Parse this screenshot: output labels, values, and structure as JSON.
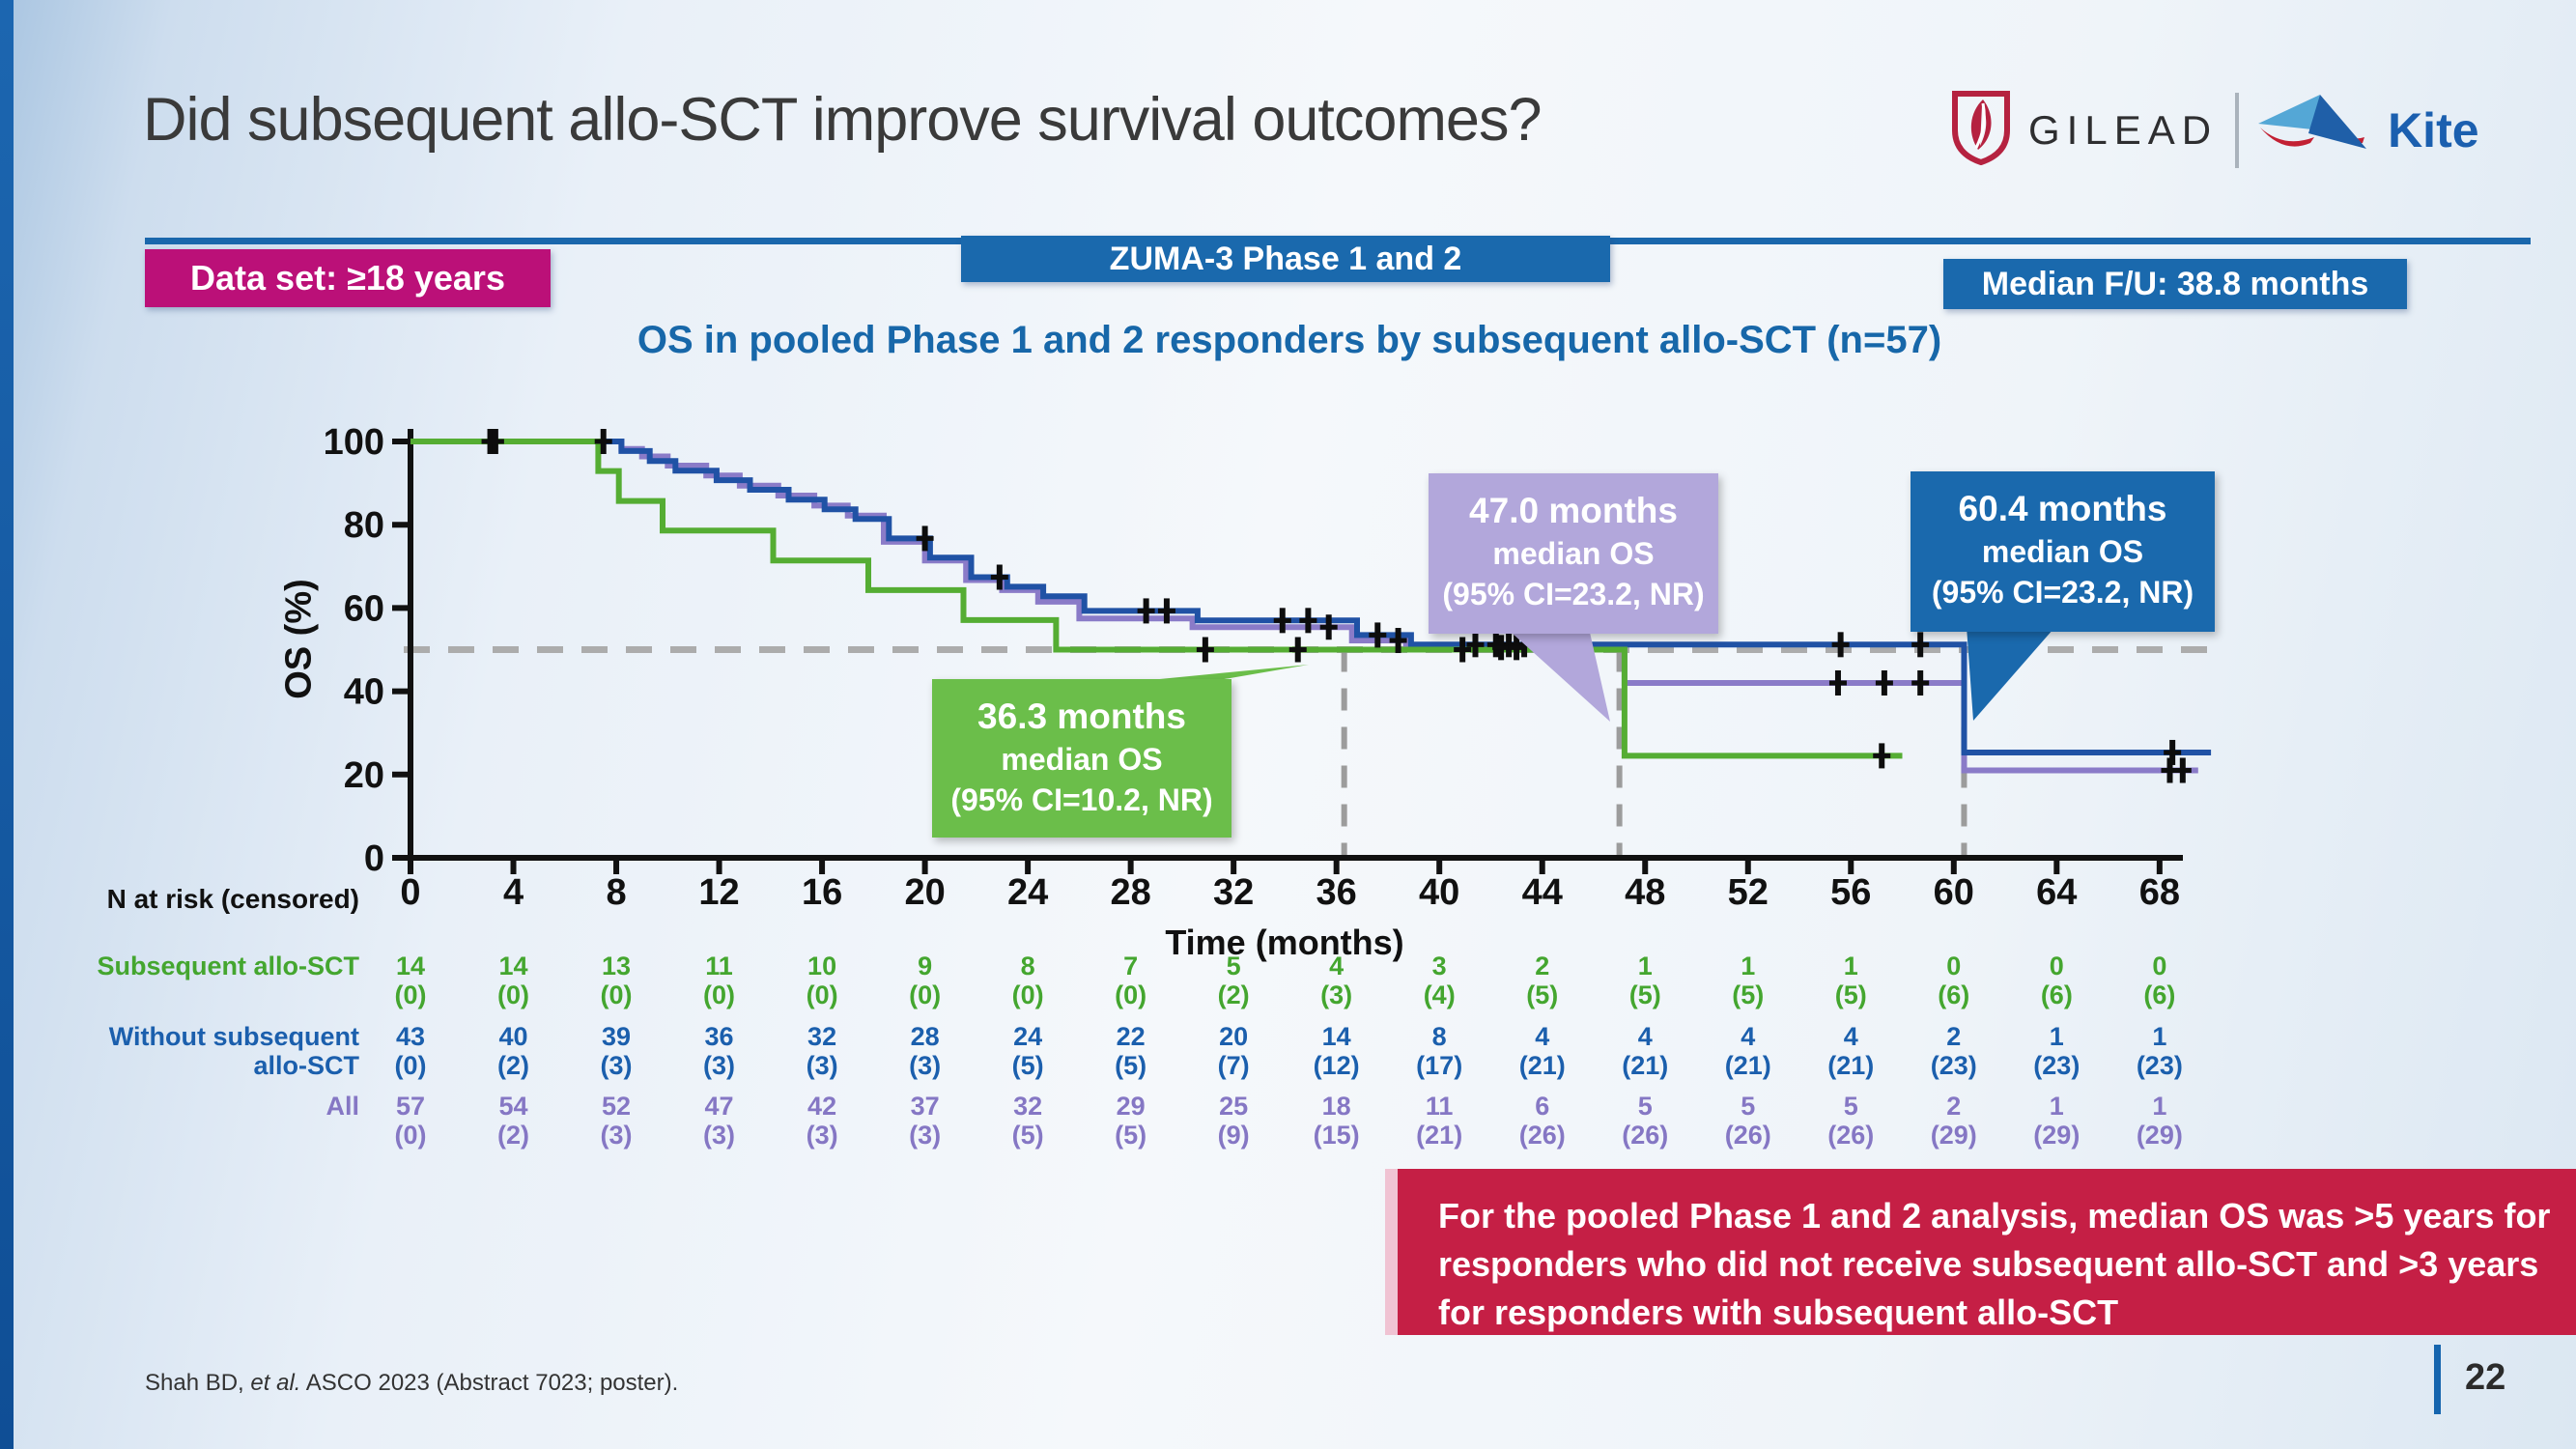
{
  "slide": {
    "title": "Did subsequent allo-SCT improve survival outcomes?",
    "page_number": "22",
    "footer": {
      "prefix": "Shah BD, ",
      "italic": "et al.",
      "suffix": " ASCO 2023 (Abstract 7023; poster)."
    }
  },
  "logos": {
    "gilead_wordmark": "GILEAD",
    "kite_wordmark": "Kite"
  },
  "badges": {
    "dataset": "Data set: ≥18 years",
    "study": "ZUMA-3 Phase 1 and 2",
    "followup": "Median F/U: 38.8 months"
  },
  "chart_title": "OS in pooled Phase 1 and 2 responders by subsequent allo-SCT (n=57)",
  "colors": {
    "accent_blue": "#1a69ad",
    "magenta": "#bb1078",
    "red_box": "#c51f45",
    "red_box_strip": "#f0c3d3",
    "curve_green": "#55ad33",
    "curve_blue": "#2052a5",
    "curve_purple": "#8a7bc8",
    "callout_green": "#6bbe4a",
    "callout_purple": "#b2a7db",
    "callout_blue": "#1a69ad",
    "dashed_gray": "#acacac",
    "left_bar_blue": "#1159a5",
    "axis_black": "#111111"
  },
  "callouts": [
    {
      "title": "36.3 months",
      "line2": "median OS",
      "line3": "(95% CI=10.2, NR)",
      "color": "#6bbe4a",
      "series": "Subsequent allo-SCT"
    },
    {
      "title": "47.0 months",
      "line2": "median OS",
      "line3": "(95% CI=23.2, NR)",
      "color": "#b2a7db",
      "series": "All"
    },
    {
      "title": "60.4 months",
      "line2": "median OS",
      "line3": "(95% CI=23.2, NR)",
      "color": "#1a69ad",
      "series": "Without subsequent allo-SCT"
    }
  ],
  "takeaway": "For the pooled Phase 1 and 2 analysis, median OS was >5 years for responders who did not receive subsequent allo-SCT and >3 years for responders with subsequent allo-SCT",
  "chart_data": {
    "type": "line",
    "subtype": "kaplan-meier",
    "title": "OS in pooled Phase 1 and 2 responders by subsequent allo-SCT (n=57)",
    "xlabel": "Time (months)",
    "ylabel": "OS (%)",
    "xlim": [
      0,
      68
    ],
    "ylim": [
      0,
      100
    ],
    "xticks": [
      0,
      4,
      8,
      12,
      16,
      20,
      24,
      28,
      32,
      36,
      40,
      44,
      48,
      52,
      56,
      60,
      64,
      68
    ],
    "yticks": [
      0,
      20,
      40,
      60,
      80,
      100
    ],
    "grid": false,
    "legend": "none (series identified in risk table and callouts)",
    "reference_line_y": 50,
    "median_markers_x": [
      36.3,
      47.0,
      60.4
    ],
    "series": [
      {
        "name": "Subsequent allo-SCT",
        "color": "#55ad33",
        "median_os_months": 36.3,
        "ci_95": "10.2, NR",
        "steps": [
          [
            0,
            100
          ],
          [
            7.3,
            100
          ],
          [
            7.3,
            92.9
          ],
          [
            8.1,
            92.9
          ],
          [
            8.1,
            85.7
          ],
          [
            9.8,
            85.7
          ],
          [
            9.8,
            78.6
          ],
          [
            14.1,
            78.6
          ],
          [
            14.1,
            71.4
          ],
          [
            17.8,
            71.4
          ],
          [
            17.8,
            64.3
          ],
          [
            21.5,
            64.3
          ],
          [
            21.5,
            57.1
          ],
          [
            25.1,
            57.1
          ],
          [
            25.1,
            50
          ],
          [
            47.2,
            50
          ],
          [
            47.2,
            24.5
          ],
          [
            58,
            24.5
          ]
        ],
        "censors": [
          [
            3.1,
            100
          ],
          [
            30.9,
            50
          ],
          [
            34.5,
            50
          ],
          [
            40.9,
            50
          ],
          [
            57.2,
            24.5
          ]
        ]
      },
      {
        "name": "Without subsequent allo-SCT",
        "color": "#2052a5",
        "median_os_months": 60.4,
        "ci_95": "23.2, NR",
        "steps": [
          [
            0,
            100
          ],
          [
            8.2,
            100
          ],
          [
            8.2,
            97.7
          ],
          [
            9.3,
            97.7
          ],
          [
            9.3,
            95.3
          ],
          [
            10.3,
            95.3
          ],
          [
            10.3,
            93
          ],
          [
            11.9,
            93
          ],
          [
            11.9,
            90.7
          ],
          [
            13.2,
            90.7
          ],
          [
            13.2,
            88.4
          ],
          [
            14.7,
            88.4
          ],
          [
            14.7,
            86
          ],
          [
            16.1,
            86
          ],
          [
            16.1,
            83.7
          ],
          [
            17.3,
            83.7
          ],
          [
            17.3,
            81.4
          ],
          [
            18.6,
            81.4
          ],
          [
            18.6,
            76.7
          ],
          [
            20.2,
            76.7
          ],
          [
            20.2,
            72.1
          ],
          [
            21.8,
            72.1
          ],
          [
            21.8,
            67.4
          ],
          [
            23.2,
            67.4
          ],
          [
            23.2,
            65.1
          ],
          [
            24.6,
            65.1
          ],
          [
            24.6,
            62.8
          ],
          [
            26.2,
            62.8
          ],
          [
            26.2,
            59.3
          ],
          [
            30.6,
            59.3
          ],
          [
            30.6,
            57
          ],
          [
            36.8,
            57
          ],
          [
            36.8,
            53.5
          ],
          [
            38.9,
            53.5
          ],
          [
            38.9,
            51.2
          ],
          [
            60.4,
            51.2
          ],
          [
            60.4,
            25.3
          ],
          [
            70,
            25.3
          ]
        ],
        "censors": [
          [
            3.3,
            100
          ],
          [
            7.5,
            100
          ],
          [
            20,
            76.7
          ],
          [
            22.9,
            67.4
          ],
          [
            28.6,
            59.3
          ],
          [
            29.4,
            59.3
          ],
          [
            33.9,
            57
          ],
          [
            34.9,
            57
          ],
          [
            37.6,
            53.5
          ],
          [
            41.4,
            51.2
          ],
          [
            42.2,
            51.2
          ],
          [
            42.7,
            51.2
          ],
          [
            43.3,
            51.2
          ],
          [
            45.3,
            51.2
          ],
          [
            55.6,
            51.2
          ],
          [
            58.7,
            51.2
          ],
          [
            68.5,
            25.3
          ]
        ]
      },
      {
        "name": "All",
        "color": "#8a7bc8",
        "median_os_months": 47.0,
        "ci_95": "23.2, NR",
        "steps": [
          [
            0,
            100
          ],
          [
            8.2,
            100
          ],
          [
            8.2,
            98.2
          ],
          [
            9,
            98.2
          ],
          [
            9,
            96.4
          ],
          [
            10,
            96.4
          ],
          [
            10,
            94.2
          ],
          [
            11.5,
            94.2
          ],
          [
            11.5,
            91.8
          ],
          [
            12.8,
            91.8
          ],
          [
            12.8,
            89.4
          ],
          [
            14.3,
            89.4
          ],
          [
            14.3,
            87
          ],
          [
            15.7,
            87
          ],
          [
            15.7,
            84.6
          ],
          [
            17,
            84.6
          ],
          [
            17,
            82.2
          ],
          [
            18.4,
            82.2
          ],
          [
            18.4,
            75.9
          ],
          [
            20,
            75.9
          ],
          [
            20,
            71.4
          ],
          [
            21.6,
            71.4
          ],
          [
            21.6,
            66.7
          ],
          [
            23,
            66.7
          ],
          [
            23,
            64.3
          ],
          [
            24.4,
            64.3
          ],
          [
            24.4,
            61.5
          ],
          [
            26,
            61.5
          ],
          [
            26,
            57.5
          ],
          [
            30.4,
            57.5
          ],
          [
            30.4,
            55.4
          ],
          [
            36.6,
            55.4
          ],
          [
            36.6,
            52.2
          ],
          [
            38.7,
            52.2
          ],
          [
            38.7,
            50.5
          ],
          [
            47.2,
            50.5
          ],
          [
            47.2,
            42
          ],
          [
            60.4,
            42
          ],
          [
            60.4,
            21
          ],
          [
            69.5,
            21
          ]
        ],
        "censors": [
          [
            35.7,
            55.4
          ],
          [
            38.4,
            52.2
          ],
          [
            42.4,
            50.5
          ],
          [
            43,
            50.5
          ],
          [
            55.5,
            42
          ],
          [
            57.3,
            42
          ],
          [
            58.7,
            42
          ],
          [
            68.4,
            21
          ],
          [
            68.9,
            21
          ]
        ]
      }
    ],
    "risk_table": {
      "label": "N at risk (censored)",
      "time_points": [
        0,
        4,
        8,
        12,
        16,
        20,
        24,
        28,
        32,
        36,
        40,
        44,
        48,
        52,
        56,
        60,
        64,
        68
      ],
      "rows": [
        {
          "name": "Subsequent allo-SCT",
          "text_color": "#44a62f",
          "at_risk": [
            14,
            14,
            13,
            11,
            10,
            9,
            8,
            7,
            5,
            4,
            3,
            2,
            1,
            1,
            1,
            0,
            0,
            0
          ],
          "censored": [
            0,
            0,
            0,
            0,
            0,
            0,
            0,
            0,
            2,
            3,
            4,
            5,
            5,
            5,
            5,
            6,
            6,
            6
          ]
        },
        {
          "name": "Without subsequent allo-SCT",
          "text_color": "#1b5fad",
          "at_risk": [
            43,
            40,
            39,
            36,
            32,
            28,
            24,
            22,
            20,
            14,
            8,
            4,
            4,
            4,
            4,
            2,
            1,
            1
          ],
          "censored": [
            0,
            2,
            3,
            3,
            3,
            3,
            5,
            5,
            7,
            12,
            17,
            21,
            21,
            21,
            21,
            23,
            23,
            23
          ]
        },
        {
          "name": "All",
          "text_color": "#8577c4",
          "at_risk": [
            57,
            54,
            52,
            47,
            42,
            37,
            32,
            29,
            25,
            18,
            11,
            6,
            5,
            5,
            5,
            2,
            1,
            1
          ],
          "censored": [
            0,
            2,
            3,
            3,
            3,
            3,
            5,
            5,
            9,
            15,
            21,
            26,
            26,
            26,
            26,
            29,
            29,
            29
          ]
        }
      ]
    }
  }
}
